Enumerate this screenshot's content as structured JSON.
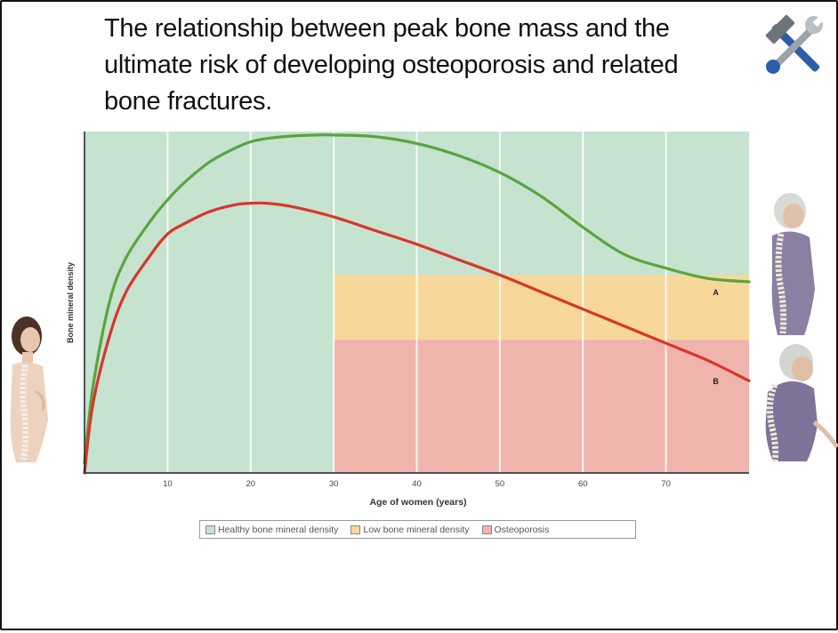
{
  "slide": {
    "title": "The relationship between peak bone mass and the ultimate risk of developing osteoporosis and related bone fractures."
  },
  "icons": {
    "tools": "hammer-wrench-icon",
    "young_woman": "young-woman-spine-figure",
    "older_woman": "older-woman-spine-figure",
    "elderly_woman": "elderly-woman-stooped-spine-figure"
  },
  "chart_data": {
    "type": "line",
    "xlabel": "Age of women (years)",
    "ylabel": "Bone mineral density",
    "xlim": [
      0,
      80
    ],
    "ylim": [
      0,
      100
    ],
    "x_ticks": [
      10,
      20,
      30,
      40,
      50,
      60,
      70
    ],
    "x_tick_labels": [
      "10",
      "20",
      "30",
      "40",
      "50",
      "60",
      "70"
    ],
    "grid": "vertical",
    "legend_placement": "bottom",
    "zones": [
      {
        "name": "Healthy bone mineral density",
        "color": "#c5e3cf",
        "x_from": 0,
        "x_to": 80,
        "y_from": 0,
        "y_to": 100
      },
      {
        "name": "Low bone mineral density",
        "color": "#f8d89a",
        "x_from": 30,
        "x_to": 80,
        "y_from": 39,
        "y_to": 58
      },
      {
        "name": "Osteoporosis",
        "color": "#efb4ac",
        "x_from": 30,
        "x_to": 80,
        "y_from": 0,
        "y_to": 39
      }
    ],
    "series": [
      {
        "name": "A",
        "color": "#5aa43f",
        "x": [
          0,
          1,
          3,
          5,
          8,
          10,
          12,
          15,
          18,
          20,
          22,
          25,
          28,
          30,
          35,
          40,
          45,
          50,
          55,
          60,
          65,
          70,
          75,
          80
        ],
        "y": [
          3,
          25,
          50,
          63,
          74,
          80,
          85,
          91,
          95,
          97,
          98,
          98.7,
          99,
          99,
          98.5,
          96.5,
          93,
          88,
          81,
          72,
          64,
          60,
          57,
          56
        ]
      },
      {
        "name": "B",
        "color": "#d9352a",
        "x": [
          0,
          1,
          3,
          5,
          8,
          10,
          12,
          15,
          18,
          20,
          22,
          25,
          30,
          35,
          40,
          45,
          50,
          55,
          60,
          65,
          70,
          75,
          80
        ],
        "y": [
          0,
          20,
          40,
          53,
          64,
          70,
          73,
          76.5,
          78.5,
          79,
          79,
          78,
          75,
          71,
          67,
          62.5,
          58,
          53,
          48,
          43,
          38,
          33,
          27
        ]
      }
    ]
  },
  "legend": {
    "items": [
      {
        "label": "Healthy bone mineral density",
        "color": "#c5e3cf"
      },
      {
        "label": "Low bone mineral density",
        "color": "#f8d89a"
      },
      {
        "label": "Osteoporosis",
        "color": "#efb4ac"
      }
    ]
  }
}
